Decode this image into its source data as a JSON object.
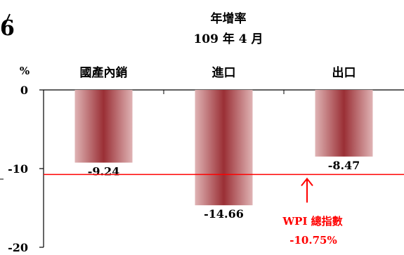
{
  "corner_mark": "6",
  "chart_data": {
    "type": "bar",
    "title": "年增率",
    "subtitle": "109 年 4 月",
    "ylabel": "%",
    "categories": [
      "國產內銷",
      "進口",
      "出口"
    ],
    "values": [
      -9.24,
      -14.66,
      -8.47
    ],
    "value_labels": [
      "-9.24",
      "-14.66",
      "-8.47"
    ],
    "ylim": [
      -20,
      0
    ],
    "yticks": [
      0,
      -10,
      -20
    ],
    "ytick_labels": [
      "0",
      "-10",
      "-20"
    ],
    "reference_line": {
      "value": -10.75,
      "label": "WPI 總指數",
      "value_label": "-10.75%",
      "color": "#ff0000"
    },
    "bar_color": "#a23a3e",
    "grid": false,
    "legend": "none"
  }
}
